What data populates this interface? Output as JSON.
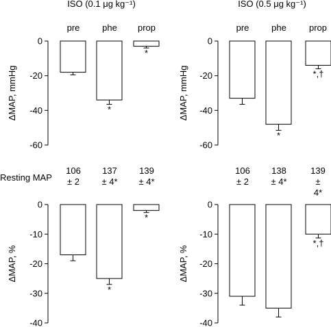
{
  "panel_titles": {
    "left": "ISO (0.1 μg kg⁻¹)",
    "right": "ISO (0.5 μg kg⁻¹)"
  },
  "group_labels": [
    "pre",
    "phe",
    "prop"
  ],
  "resting_map": {
    "label": "Resting MAP",
    "left": [
      {
        "value": "106",
        "sd": "± 2"
      },
      {
        "value": "137",
        "sd": "± 4*"
      },
      {
        "value": "139",
        "sd": "± 4*"
      }
    ],
    "right": [
      {
        "value": "106",
        "sd": "± 2"
      },
      {
        "value": "138",
        "sd": "± 4*"
      },
      {
        "value": "139",
        "sd": "± 4*"
      }
    ]
  },
  "chart_data": [
    {
      "id": "top-left",
      "type": "bar",
      "categories": [
        "pre",
        "phe",
        "prop"
      ],
      "values": [
        -18,
        -34,
        -3
      ],
      "errors": [
        1.5,
        2.5,
        1
      ],
      "annotations": [
        "",
        "*",
        "*"
      ],
      "ylabel": "ΔMAP, mmHg",
      "ylim": [
        -60,
        0
      ],
      "yticks": [
        0,
        -20,
        -40,
        -60
      ],
      "ytick_labels": [
        "0",
        "-20",
        "-40",
        "-60"
      ]
    },
    {
      "id": "top-right",
      "type": "bar",
      "categories": [
        "pre",
        "phe",
        "prop"
      ],
      "values": [
        -33,
        -48,
        -14
      ],
      "errors": [
        3.5,
        3.5,
        2
      ],
      "annotations": [
        "",
        "*",
        "*,†"
      ],
      "ylabel": "ΔMAP, mmHg",
      "ylim": [
        -60,
        0
      ],
      "yticks": [
        0,
        -20,
        -40,
        -60
      ],
      "ytick_labels": [
        "0",
        "-20",
        "-40",
        "-60"
      ]
    },
    {
      "id": "bottom-left",
      "type": "bar",
      "categories": [
        "pre",
        "phe",
        "prop"
      ],
      "values": [
        -17,
        -25,
        -2
      ],
      "errors": [
        2,
        2,
        0.7
      ],
      "annotations": [
        "",
        "*",
        "*"
      ],
      "ylabel": "ΔMAP, %",
      "ylim": [
        -40,
        0
      ],
      "yticks": [
        0,
        -10,
        -20,
        -30,
        -40
      ],
      "ytick_labels": [
        "0",
        "-10",
        "-20",
        "-30",
        "-40"
      ]
    },
    {
      "id": "bottom-right",
      "type": "bar",
      "categories": [
        "pre",
        "phe",
        "prop"
      ],
      "values": [
        -31,
        -35,
        -10
      ],
      "errors": [
        3,
        3,
        1.3
      ],
      "annotations": [
        "",
        "",
        "*,†"
      ],
      "ylabel": "ΔMAP, %",
      "ylim": [
        -40,
        0
      ],
      "yticks": [
        0,
        -10,
        -20,
        -30,
        -40
      ],
      "ytick_labels": [
        "0",
        "-10",
        "-20",
        "-30",
        "-40"
      ]
    }
  ]
}
